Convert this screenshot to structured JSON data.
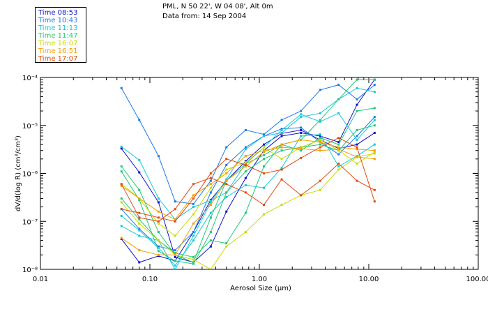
{
  "header": {
    "line1": "PML, N 50 22', W 04 08', Alt 0m",
    "line2": "Data from: 14 Sep 2004"
  },
  "legend": [
    {
      "label": "Time 08:53",
      "color": "#1010c8"
    },
    {
      "label": "Time 10:43",
      "color": "#1e78e6"
    },
    {
      "label": "Time 11:13",
      "color": "#14c8d8"
    },
    {
      "label": "Time 11:47",
      "color": "#22c878"
    },
    {
      "label": "Time 16:07",
      "color": "#c8dc00"
    },
    {
      "label": "Time 16:51",
      "color": "#f0a000"
    },
    {
      "label": "Time 17:07",
      "color": "#e04a10"
    }
  ],
  "chart_data": {
    "type": "line",
    "xlabel": "Aerosol Size (μm)",
    "ylabel": "dV/d(log R) (cm³/cm³)",
    "xscale": "log",
    "yscale": "log",
    "xlim": [
      0.01,
      100
    ],
    "ylim": [
      1e-08,
      0.0001
    ],
    "x_ticks": [
      "0.01",
      "0.10",
      "1.00",
      "10.00",
      "100.00"
    ],
    "y_ticks": [
      "10⁻⁸",
      "10⁻⁷",
      "10⁻⁶",
      "10⁻⁵",
      "10⁻⁴"
    ],
    "series": [
      {
        "color": "#1010c8",
        "x": [
          0.055,
          0.08,
          0.12,
          0.17,
          0.25,
          0.36,
          0.5,
          0.75,
          1.1,
          1.6,
          2.4,
          3.6,
          5.3,
          7.8,
          11.3
        ],
        "y": [
          4.3e-08,
          1.4e-08,
          1.9e-08,
          1.5e-08,
          6e-08,
          2.8e-07,
          7e-07,
          1.8e-06,
          4e-06,
          6.8e-06,
          8e-06,
          5e-06,
          3.3e-06,
          4e-06,
          7e-06
        ]
      },
      {
        "color": "#1010c8",
        "x": [
          0.055,
          0.08,
          0.12,
          0.17,
          0.25,
          0.36,
          0.5,
          0.75,
          1.1,
          1.6,
          2.4,
          3.6,
          5.3,
          7.8,
          11.3
        ],
        "y": [
          3.3e-06,
          1.05e-06,
          2.5e-07,
          1.8e-08,
          1.4e-08,
          3e-08,
          1.6e-07,
          8e-07,
          3e-06,
          6e-06,
          7e-06,
          6e-06,
          4.5e-06,
          2.7e-05,
          9e-05
        ]
      },
      {
        "color": "#1e78e6",
        "x": [
          0.055,
          0.08,
          0.12,
          0.17,
          0.25,
          0.36,
          0.5,
          0.75,
          1.1,
          1.6,
          2.4,
          3.6,
          5.3,
          7.8,
          11.3
        ],
        "y": [
          6e-05,
          1.3e-05,
          2.3e-06,
          2.6e-07,
          2.3e-07,
          7e-07,
          3.5e-06,
          8e-06,
          6.5e-06,
          1.3e-05,
          2e-05,
          5.5e-05,
          7e-05,
          3.5e-05,
          7e-05
        ]
      },
      {
        "color": "#1e78e6",
        "x": [
          0.055,
          0.08,
          0.12,
          0.17,
          0.25,
          0.36,
          0.5,
          0.75,
          1.1,
          1.6,
          2.4,
          3.6,
          5.3,
          7.8,
          11.3
        ],
        "y": [
          1.8e-07,
          7e-08,
          3e-08,
          2.5e-08,
          6e-08,
          4e-07,
          1.5e-06,
          3.5e-06,
          6e-06,
          8.5e-06,
          9e-06,
          4.5e-06,
          2.5e-06,
          6e-06,
          1.5e-05
        ]
      },
      {
        "color": "#14c8d8",
        "x": [
          0.055,
          0.08,
          0.12,
          0.17,
          0.25,
          0.36,
          0.5,
          0.75,
          1.1,
          1.6,
          2.4,
          3.6,
          5.3,
          7.8,
          11.3
        ],
        "y": [
          3.6e-06,
          1.9e-06,
          3e-07,
          1.1e-07,
          2e-07,
          2.7e-07,
          4e-07,
          1.6e-06,
          3.5e-06,
          8e-06,
          1.7e-05,
          1.2e-05,
          1.8e-05,
          5e-06,
          1.3e-05
        ]
      },
      {
        "color": "#14c8d8",
        "x": [
          0.055,
          0.08,
          0.12,
          0.17,
          0.25,
          0.36,
          0.5,
          0.75,
          1.1,
          1.6,
          2.4,
          3.6,
          5.3,
          7.8,
          11.3
        ],
        "y": [
          1.3e-07,
          6.5e-08,
          2.8e-08,
          1.2e-08,
          4e-08,
          1.5e-07,
          3.2e-07,
          5.7e-07,
          5e-07,
          1.3e-06,
          6e-06,
          6.5e-06,
          1.4e-06,
          2.3e-06,
          4e-06
        ]
      },
      {
        "color": "#14c8d8",
        "x": [
          0.055,
          0.08,
          0.12,
          0.17,
          0.25,
          0.36,
          0.5,
          0.75,
          1.1,
          1.6,
          2.4,
          3.6,
          5.3,
          7.8,
          11.3
        ],
        "y": [
          8e-08,
          5e-08,
          4e-08,
          1e-08,
          5e-08,
          2.5e-07,
          7.5e-07,
          3.2e-06,
          6e-06,
          7e-06,
          1.5e-05,
          1.8e-05,
          3.5e-05,
          6e-05,
          5e-05
        ]
      },
      {
        "color": "#22c878",
        "x": [
          0.055,
          0.08,
          0.12,
          0.17,
          0.25,
          0.36,
          0.5,
          0.75,
          1.1,
          1.6,
          2.4,
          3.6,
          5.3,
          7.8,
          11.3
        ],
        "y": [
          1.4e-06,
          4.5e-07,
          6e-08,
          2e-08,
          1.4e-08,
          1.2e-07,
          7e-07,
          1.6e-06,
          2.4e-06,
          4e-06,
          3e-06,
          5.5e-06,
          4e-06,
          2e-05,
          2.3e-05
        ]
      },
      {
        "color": "#22c878",
        "x": [
          0.055,
          0.08,
          0.12,
          0.17,
          0.25,
          0.36,
          0.5,
          0.75,
          1.1,
          1.6,
          2.4,
          3.6,
          5.3,
          7.8,
          11.3
        ],
        "y": [
          1.1e-06,
          2.8e-07,
          2.4e-08,
          1.5e-08,
          1.3e-08,
          6e-08,
          4e-07,
          1.1e-06,
          2e-06,
          3e-06,
          3.5e-06,
          4e-06,
          3e-06,
          8e-06,
          1e-05
        ]
      },
      {
        "color": "#22c878",
        "x": [
          0.055,
          0.08,
          0.12,
          0.17,
          0.25,
          0.36,
          0.5,
          0.75,
          1.1,
          1.6,
          2.4,
          3.6,
          5.3,
          7.8,
          11.3
        ],
        "y": [
          3e-07,
          1.1e-07,
          4e-08,
          2.2e-08,
          1.8e-08,
          4e-08,
          3.5e-08,
          1.5e-07,
          1.4e-06,
          4e-06,
          5e-06,
          1.3e-05,
          3.5e-05,
          9e-05,
          9e-05
        ]
      },
      {
        "color": "#c8dc00",
        "x": [
          0.055,
          0.08,
          0.12,
          0.17,
          0.25,
          0.36,
          0.5,
          0.75,
          1.1,
          1.6,
          2.4,
          3.6,
          5.3,
          7.8,
          11.3
        ],
        "y": [
          2.5e-07,
          9e-08,
          4e-08,
          2e-08,
          1.6e-08,
          1e-08,
          3e-08,
          6e-08,
          1.4e-07,
          2.2e-07,
          3.5e-07,
          4.5e-07,
          1.2e-06,
          2.2e-06,
          2.6e-06
        ]
      },
      {
        "color": "#c8dc00",
        "x": [
          0.055,
          0.08,
          0.12,
          0.17,
          0.25,
          0.36,
          0.5,
          0.75,
          1.1,
          1.6,
          2.4,
          3.6,
          5.3,
          7.8,
          11.3
        ],
        "y": [
          6e-07,
          3e-07,
          9e-08,
          5e-08,
          1.4e-07,
          5e-07,
          1.2e-06,
          1.7e-06,
          3.5e-06,
          2e-06,
          3.5e-06,
          5e-06,
          3e-06,
          1.6e-06,
          2.8e-06
        ]
      },
      {
        "color": "#f0a000",
        "x": [
          0.055,
          0.08,
          0.12,
          0.17,
          0.25,
          0.36,
          0.5,
          0.75,
          1.1,
          1.6,
          2.4,
          3.6,
          5.3,
          7.8,
          11.3
        ],
        "y": [
          5.5e-07,
          3e-07,
          1.6e-07,
          1.1e-07,
          3.5e-07,
          6e-07,
          1e-06,
          2.3e-06,
          3e-06,
          3.5e-06,
          3.3e-06,
          3e-06,
          3.2e-06,
          2.2e-06,
          2e-06
        ]
      },
      {
        "color": "#f0a000",
        "x": [
          0.055,
          0.08,
          0.12,
          0.17,
          0.25,
          0.36,
          0.5,
          0.75,
          1.1,
          1.6,
          2.4,
          3.6,
          5.3,
          7.8,
          11.3
        ],
        "y": [
          4.5e-08,
          2.5e-08,
          2e-08,
          2e-08,
          9e-08,
          2.2e-07,
          7e-07,
          1.4e-06,
          2.8e-06,
          4e-06,
          5e-06,
          4.5e-06,
          3.5e-06,
          3.2e-06,
          3e-06
        ]
      },
      {
        "color": "#e04a10",
        "x": [
          0.055,
          0.08,
          0.12,
          0.17,
          0.25,
          0.36,
          0.5,
          0.75,
          1.1,
          1.6,
          2.4,
          3.6,
          5.3,
          7.8,
          11.3
        ],
        "y": [
          6e-07,
          1.2e-07,
          1e-07,
          1.8e-07,
          6e-07,
          8e-07,
          6e-07,
          4e-07,
          2.2e-07,
          7.5e-07,
          3.5e-07,
          7e-07,
          1.6e-06,
          7e-07,
          4.5e-07
        ]
      },
      {
        "color": "#e04a10",
        "x": [
          0.055,
          0.08,
          0.12,
          0.17,
          0.25,
          0.36,
          0.5,
          0.75,
          1.1,
          1.6,
          2.4,
          3.6,
          5.3,
          7.8,
          11.3
        ],
        "y": [
          1.8e-07,
          1.5e-07,
          1.2e-07,
          1e-07,
          3e-07,
          1e-06,
          2e-06,
          1.5e-06,
          1e-06,
          1.2e-06,
          2.1e-06,
          3.5e-06,
          5.5e-06,
          3.5e-06,
          2.6e-07
        ]
      }
    ]
  }
}
